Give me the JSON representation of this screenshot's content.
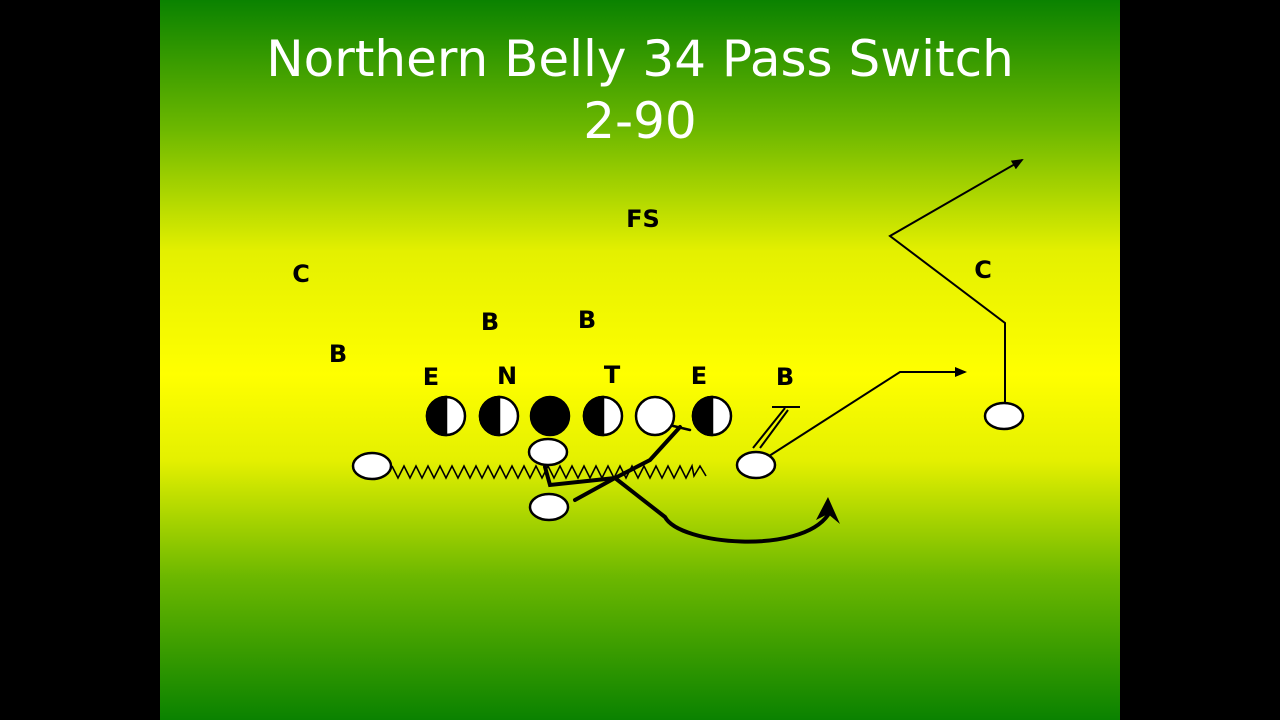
{
  "slide": {
    "title_line1": "Northern Belly 34 Pass Switch",
    "title_line2": "2-90"
  },
  "defense_labels": {
    "fs": "FS",
    "c_left": "C",
    "c_right": "C",
    "b_left_wide": "B",
    "b_inside_left": "B",
    "b_inside_right": "B",
    "b_right": "B",
    "e_left": "E",
    "n": "N",
    "t": "T",
    "e_right": "E"
  },
  "colors": {
    "background_top": "#0a8200",
    "background_mid": "#ffff00",
    "title_text": "#ffffff",
    "ink": "#000000",
    "player_fill": "#ffffff"
  }
}
